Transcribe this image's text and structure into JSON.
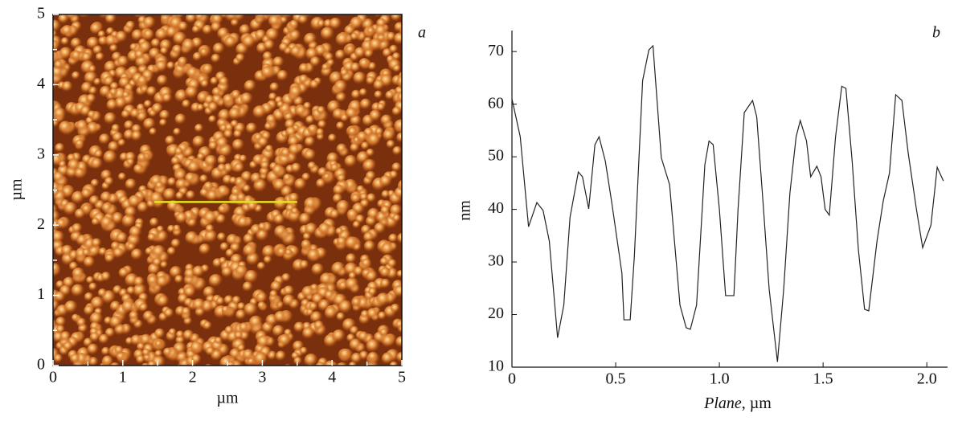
{
  "chart_data": [
    {
      "type": "image",
      "annotation": "a",
      "xlabel": "µm",
      "ylabel": "µm",
      "xlim": [
        0,
        5
      ],
      "ylim": [
        0,
        5
      ],
      "xticks": [
        0,
        1,
        2,
        3,
        4,
        5
      ],
      "yticks": [
        0,
        1,
        2,
        3,
        4,
        5
      ],
      "profile_line": {
        "x": [
          1.45,
          3.5
        ],
        "y": [
          2.33,
          2.33
        ],
        "color": "#e8e020"
      }
    },
    {
      "type": "line",
      "annotation": "b",
      "xlabel": [
        "Plane",
        ", µm"
      ],
      "ylabel": "nm",
      "xlim": [
        0,
        2.1
      ],
      "ylim": [
        10,
        74
      ],
      "xticks": [
        0,
        0.5,
        {
          "value": 1,
          "label": "1.0"
        },
        1.5,
        {
          "value": 2,
          "label": "2.0"
        }
      ],
      "yticks": [
        10,
        20,
        30,
        40,
        50,
        60,
        70
      ],
      "series": [
        {
          "color": "#222222",
          "x": [
            0,
            0.04,
            0.08,
            0.12,
            0.15,
            0.18,
            0.22,
            0.25,
            0.28,
            0.32,
            0.34,
            0.37,
            0.4,
            0.42,
            0.45,
            0.48,
            0.53,
            0.54,
            0.57,
            0.59,
            0.63,
            0.66,
            0.68,
            0.72,
            0.76,
            0.81,
            0.84,
            0.86,
            0.89,
            0.93,
            0.95,
            0.97,
            1.0,
            1.03,
            1.07,
            1.09,
            1.12,
            1.16,
            1.18,
            1.21,
            1.24,
            1.28,
            1.31,
            1.34,
            1.37,
            1.39,
            1.42,
            1.44,
            1.47,
            1.49,
            1.51,
            1.53,
            1.56,
            1.59,
            1.61,
            1.64,
            1.67,
            1.7,
            1.72,
            1.76,
            1.79,
            1.82,
            1.85,
            1.88,
            1.91,
            1.95,
            1.98,
            2.02,
            2.05,
            2.08
          ],
          "values": [
            61,
            53.8,
            36.7,
            41.3,
            39.8,
            34,
            15.6,
            21.8,
            38.5,
            47.1,
            46.2,
            40.1,
            52.3,
            53.8,
            49.2,
            41.6,
            27.9,
            19,
            19,
            31,
            64.5,
            70.3,
            71.1,
            49.8,
            44.7,
            21.8,
            17.5,
            17.2,
            21.8,
            48.5,
            53,
            52.3,
            40,
            23.6,
            23.6,
            40,
            58.4,
            60.7,
            57.6,
            41.6,
            24.8,
            11,
            24.8,
            43.1,
            53.8,
            56.9,
            53,
            46.2,
            48.2,
            46.2,
            40,
            38.9,
            53.8,
            63.4,
            63,
            49.2,
            32.4,
            21,
            20.7,
            34,
            41.6,
            46.9,
            61.8,
            60.7,
            50.8,
            40,
            32.7,
            37,
            48,
            45.4
          ]
        }
      ]
    }
  ]
}
